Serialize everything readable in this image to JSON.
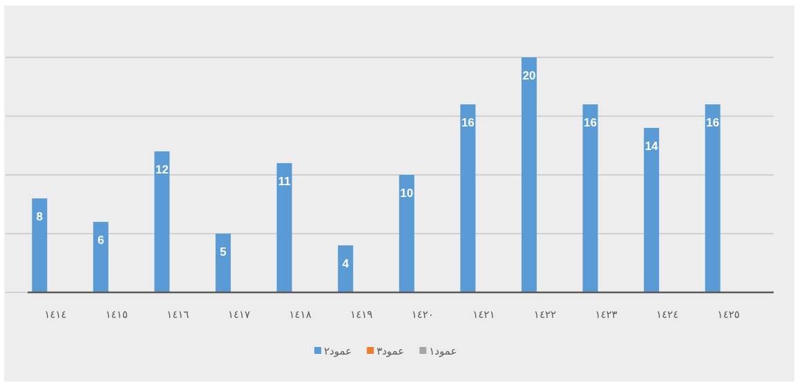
{
  "chart_data": {
    "type": "bar",
    "categories": [
      "١٤١٤",
      "١٤١٥",
      "١٤١٦",
      "١٤١٧",
      "١٤١٨",
      "١٤١٩",
      "١٤٢٠",
      "١٤٢١",
      "١٤٢٢",
      "١٤٢٣",
      "١٤٢٤",
      "١٤٢٥"
    ],
    "series": [
      {
        "name": "عمود٢",
        "color": "#5b9bd5",
        "values": [
          8,
          6,
          12,
          5,
          11,
          4,
          10,
          16,
          20,
          16,
          14,
          16
        ]
      },
      {
        "name": "عمود٣",
        "color": "#ed7d31",
        "values": [
          null,
          null,
          null,
          null,
          null,
          null,
          null,
          null,
          null,
          null,
          null,
          null
        ]
      },
      {
        "name": "عمود١",
        "color": "#a5a5a5",
        "values": [
          null,
          null,
          null,
          null,
          null,
          null,
          null,
          null,
          null,
          null,
          null,
          null
        ]
      }
    ],
    "ylim": [
      0,
      20
    ],
    "yticks": [
      {
        "value": 0,
        "label": null
      },
      {
        "value": 5,
        "label": null
      },
      {
        "value": 10,
        "label": null
      },
      {
        "value": 15,
        "label": null
      },
      {
        "value": 20,
        "label": null
      }
    ],
    "tick_labels": "x",
    "grid": "y",
    "data_labels": true,
    "legend": "bottom"
  }
}
